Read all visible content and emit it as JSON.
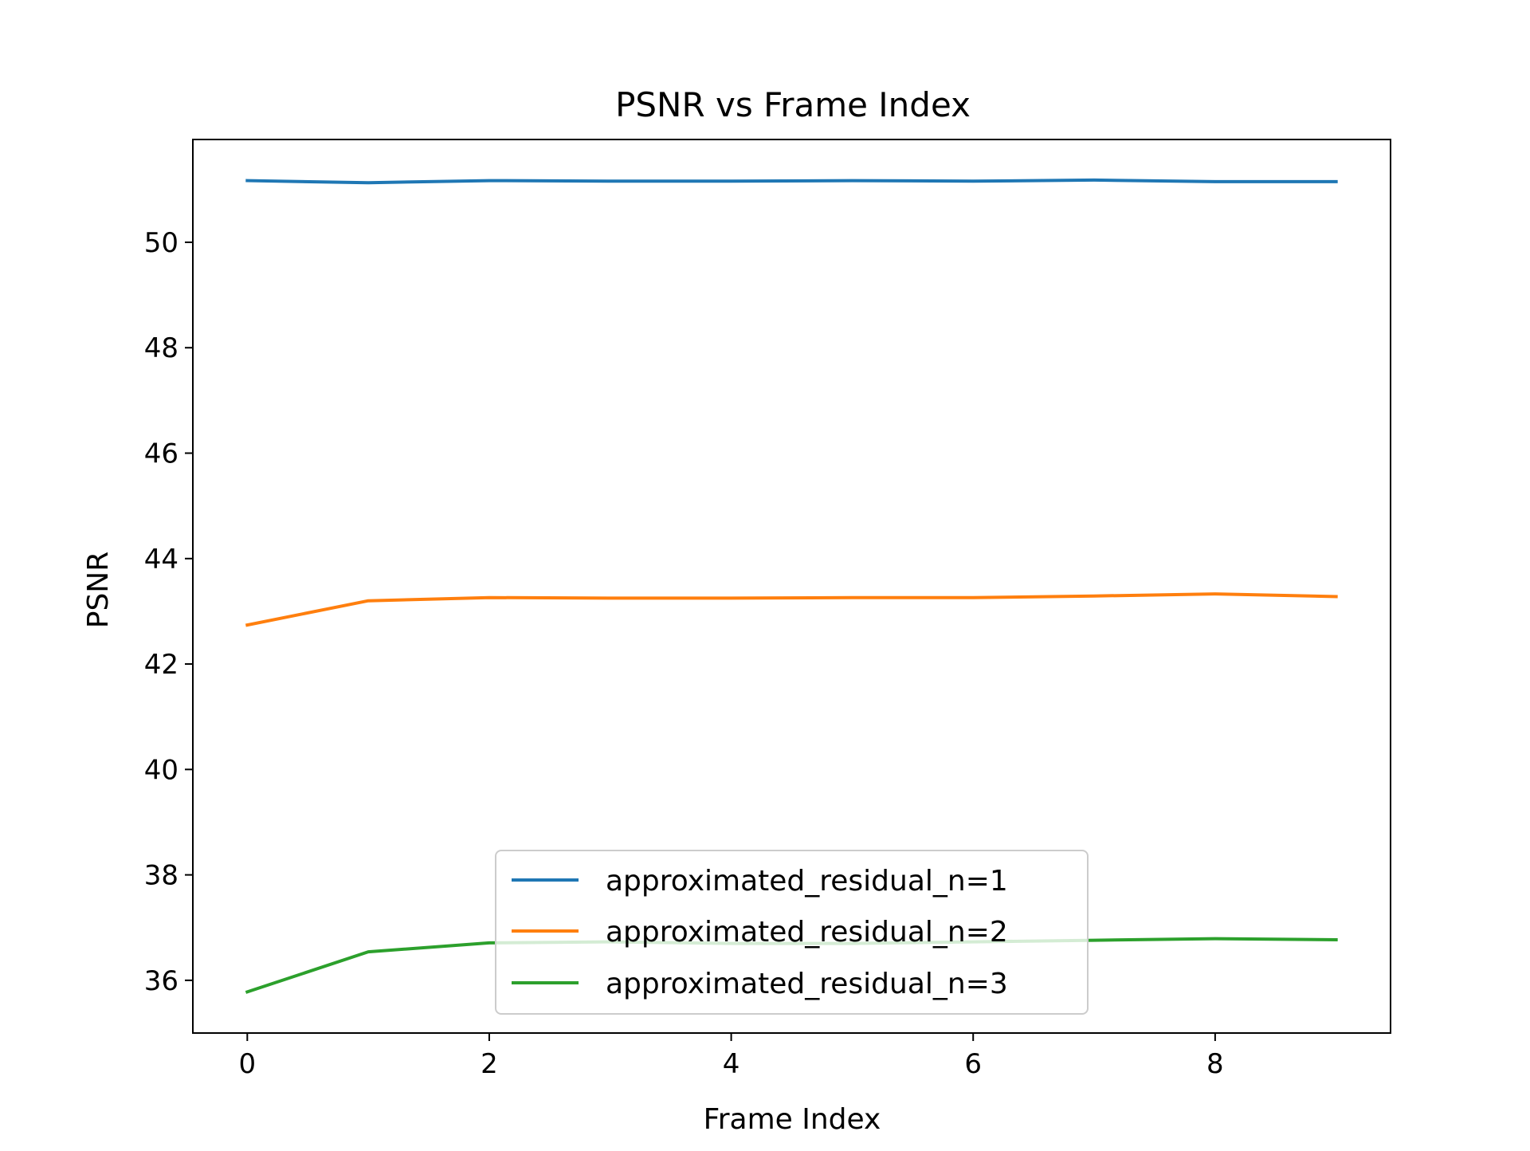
{
  "chart_data": {
    "type": "line",
    "title": "PSNR vs Frame Index",
    "xlabel": "Frame Index",
    "ylabel": "PSNR",
    "x": [
      0,
      1,
      2,
      3,
      4,
      5,
      6,
      7,
      8,
      9
    ],
    "xlim": [
      -0.45,
      9.45
    ],
    "ylim": [
      35.0,
      51.95
    ],
    "xticks": [
      0,
      2,
      4,
      6,
      8
    ],
    "yticks": [
      36,
      38,
      40,
      42,
      44,
      46,
      48,
      50
    ],
    "grid": false,
    "legend_position": "lower-center",
    "series": [
      {
        "name": "approximated_residual_n=1",
        "color": "#1f77b4",
        "values": [
          51.17,
          51.13,
          51.17,
          51.16,
          51.16,
          51.17,
          51.16,
          51.18,
          51.15,
          51.15
        ]
      },
      {
        "name": "approximated_residual_n=2",
        "color": "#ff7f0e",
        "values": [
          42.74,
          43.2,
          43.26,
          43.25,
          43.25,
          43.26,
          43.26,
          43.29,
          43.33,
          43.28
        ]
      },
      {
        "name": "approximated_residual_n=3",
        "color": "#2ca02c",
        "values": [
          35.78,
          36.54,
          36.71,
          36.73,
          36.7,
          36.7,
          36.73,
          36.76,
          36.79,
          36.77
        ]
      }
    ]
  }
}
